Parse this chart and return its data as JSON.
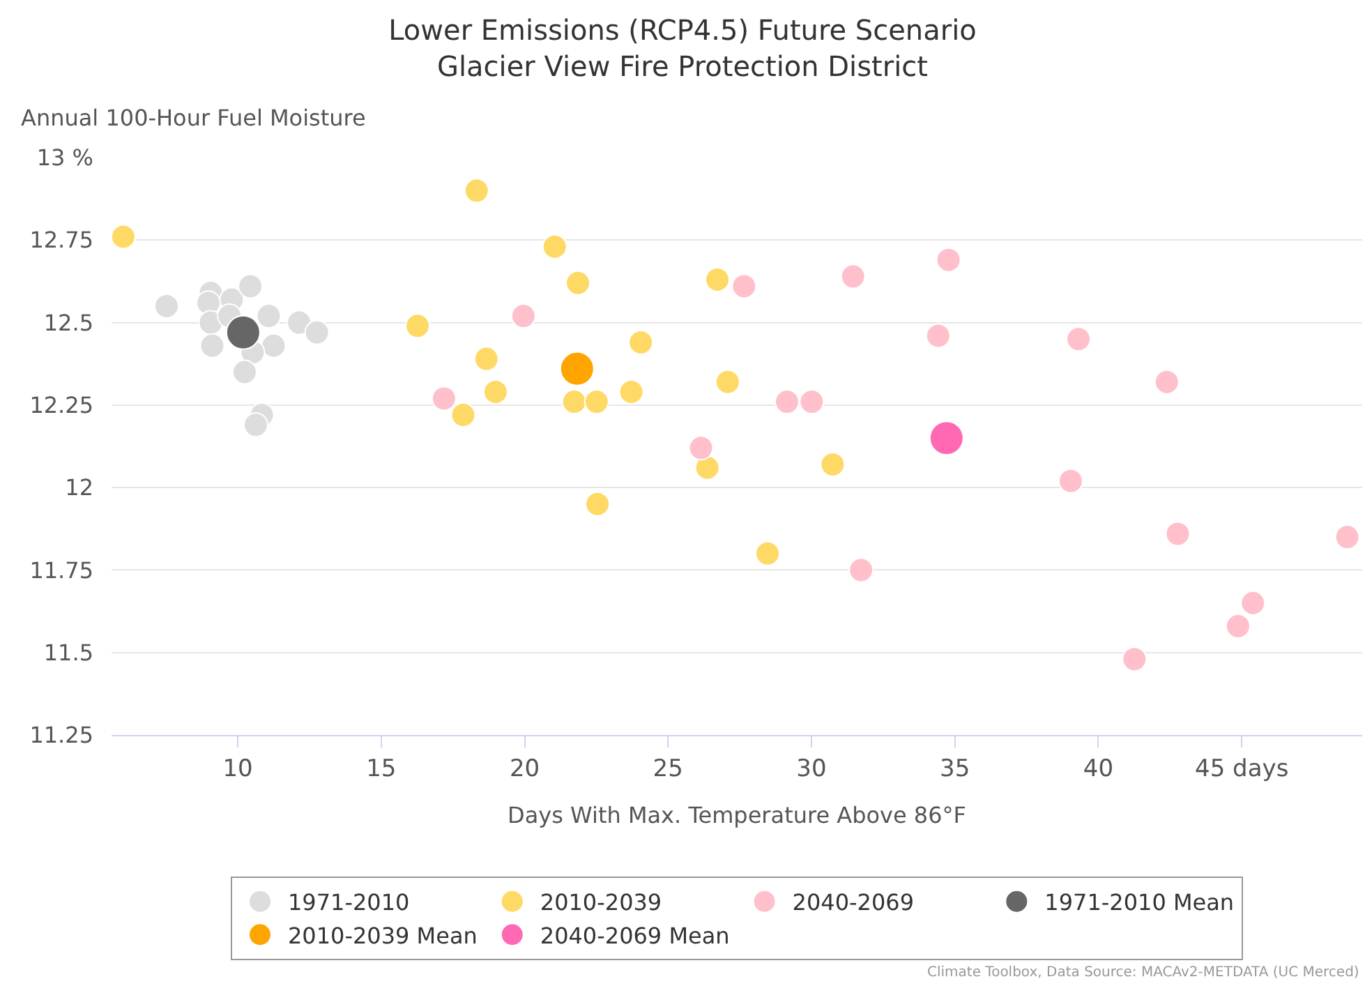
{
  "chart_data": {
    "type": "scatter",
    "title": "Lower Emissions (RCP4.5) Future Scenario\nGlacier View Fire Protection District",
    "xlabel": "Days With Max. Temperature Above 86°F",
    "ylabel": "Annual 100-Hour Fuel Moisture",
    "xlim": [
      5.6,
      49.2
    ],
    "xticks": [
      10,
      15,
      20,
      25,
      30,
      35,
      40,
      {
        "value": 45,
        "label": "45 days"
      }
    ],
    "ylim": [
      11.25,
      13
    ],
    "yticks": [
      11.25,
      11.5,
      11.75,
      12,
      12.25,
      12.5,
      12.75,
      {
        "value": 13,
        "label": "13 %"
      }
    ],
    "grid": "y",
    "legend": "bottom",
    "marker": "circle",
    "annotations": [
      "Climate Toolbox, Data Source: MACAv2-METDATA (UC Merced)"
    ],
    "series": [
      {
        "name": "1971-2010",
        "color": "#dddddd",
        "x": [
          7.52,
          9.06,
          8.98,
          9.79,
          10.44,
          9.06,
          9.71,
          11.08,
          12.14,
          12.76,
          9.11,
          11.25,
          10.52,
          10.24,
          10.84,
          10.63
        ],
        "values": [
          12.55,
          12.59,
          12.56,
          12.57,
          12.61,
          12.5,
          12.52,
          12.52,
          12.5,
          12.47,
          12.43,
          12.43,
          12.41,
          12.35,
          12.22,
          12.19
        ]
      },
      {
        "name": "2010-2039",
        "color": "#ffd966",
        "x": [
          6.01,
          18.33,
          21.05,
          21.86,
          26.72,
          16.27,
          24.05,
          18.67,
          27.08,
          18.99,
          21.73,
          22.51,
          23.72,
          17.86,
          26.37,
          30.74,
          22.54,
          28.47
        ],
        "values": [
          12.76,
          12.9,
          12.73,
          12.62,
          12.63,
          12.49,
          12.44,
          12.39,
          12.32,
          12.29,
          12.26,
          12.26,
          12.29,
          12.22,
          12.06,
          12.07,
          11.95,
          11.8
        ]
      },
      {
        "name": "2040-2069",
        "color": "#ffc0cb",
        "x": [
          19.96,
          17.19,
          27.65,
          31.45,
          26.15,
          29.15,
          30.01,
          34.78,
          34.42,
          39.31,
          42.39,
          39.04,
          42.77,
          48.68,
          31.73,
          45.39,
          44.87,
          41.26
        ],
        "values": [
          12.52,
          12.27,
          12.61,
          12.64,
          12.12,
          12.26,
          12.26,
          12.69,
          12.46,
          12.45,
          12.32,
          12.02,
          11.86,
          11.85,
          11.75,
          11.65,
          11.58,
          11.48
        ]
      },
      {
        "name": "1971-2010 Mean",
        "color": "#666666",
        "x": [
          10.19
        ],
        "values": [
          12.47
        ]
      },
      {
        "name": "2010-2039 Mean",
        "color": "#ffa500",
        "x": [
          21.83
        ],
        "values": [
          12.36
        ]
      },
      {
        "name": "2040-2069 Mean",
        "color": "#ff69b4",
        "x": [
          34.71
        ],
        "values": [
          12.15
        ]
      }
    ]
  }
}
